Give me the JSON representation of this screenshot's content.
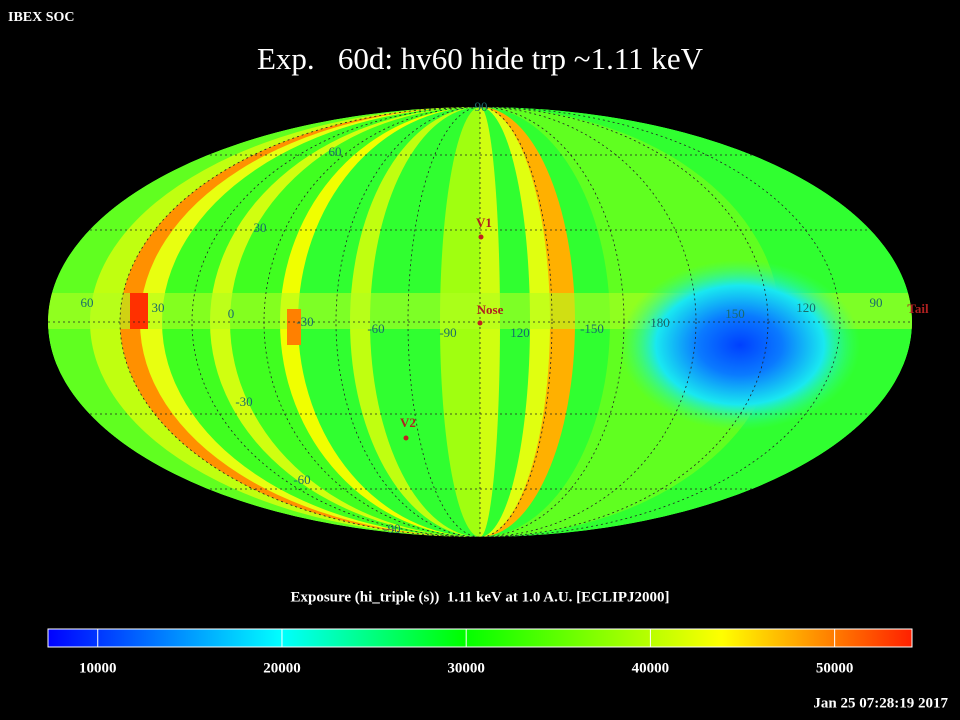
{
  "header": {
    "label": "IBEX SOC"
  },
  "title": "Exp.   60d: hv60 hide trp ~1.11 keV",
  "map": {
    "latitude_labels": [
      "90",
      "60",
      "30",
      "-30",
      "-60",
      "-90"
    ],
    "longitude_labels": [
      "60",
      "30",
      "0",
      "-30",
      "-60",
      "-90",
      "120",
      "-150",
      "180",
      "150",
      "120",
      "90"
    ],
    "markers": [
      "V1",
      "Nose",
      "V2",
      "Tail"
    ]
  },
  "colorbar": {
    "title": "Exposure (hi_triple (s))  1.11 keV at 1.0 A.U. [ECLIPJ2000]",
    "range": [
      7300,
      54200
    ],
    "ticks": [
      10000,
      20000,
      30000,
      40000,
      50000
    ]
  },
  "timestamp": "Jan 25 07:28:19 2017"
}
